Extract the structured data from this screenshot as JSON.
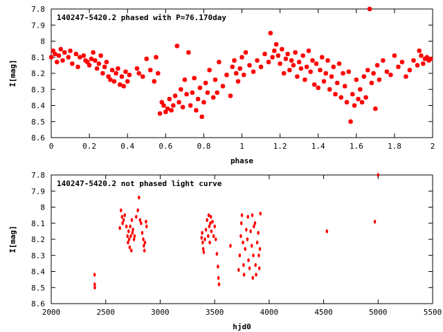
{
  "chart_data": [
    {
      "type": "scatter",
      "title": "140247-5420.2 phased with P=76.170day",
      "xlabel": "phase",
      "ylabel": "I[mag]",
      "xlim": [
        0,
        2
      ],
      "ylim": [
        8.6,
        7.8
      ],
      "y_reversed": true,
      "x_ticks": [
        "0",
        "0.2",
        "0.4",
        "0.6",
        "0.8",
        "1",
        "1.2",
        "1.4",
        "1.6",
        "1.8",
        "2"
      ],
      "y_ticks": [
        "7.8",
        "7.9",
        "8",
        "8.1",
        "8.2",
        "8.3",
        "8.4",
        "8.5",
        "8.6"
      ],
      "grid": false,
      "marker_color": "#ff0000",
      "points": [
        [
          0.0,
          8.1
        ],
        [
          0.01,
          8.06
        ],
        [
          0.02,
          8.08
        ],
        [
          0.03,
          8.13
        ],
        [
          0.04,
          8.09
        ],
        [
          0.05,
          8.05
        ],
        [
          0.06,
          8.12
        ],
        [
          0.07,
          8.07
        ],
        [
          0.09,
          8.1
        ],
        [
          0.1,
          8.06
        ],
        [
          0.11,
          8.14
        ],
        [
          0.13,
          8.08
        ],
        [
          0.14,
          8.16
        ],
        [
          0.15,
          8.1
        ],
        [
          0.17,
          8.09
        ],
        [
          0.18,
          8.12
        ],
        [
          0.19,
          8.13
        ],
        [
          0.2,
          8.15
        ],
        [
          0.21,
          8.11
        ],
        [
          0.22,
          8.07
        ],
        [
          0.23,
          8.12
        ],
        [
          0.24,
          8.17
        ],
        [
          0.25,
          8.14
        ],
        [
          0.26,
          8.09
        ],
        [
          0.27,
          8.2
        ],
        [
          0.28,
          8.16
        ],
        [
          0.29,
          8.13
        ],
        [
          0.3,
          8.22
        ],
        [
          0.31,
          8.24
        ],
        [
          0.32,
          8.18
        ],
        [
          0.33,
          8.25
        ],
        [
          0.34,
          8.2
        ],
        [
          0.35,
          8.17
        ],
        [
          0.36,
          8.27
        ],
        [
          0.37,
          8.22
        ],
        [
          0.38,
          8.28
        ],
        [
          0.39,
          8.19
        ],
        [
          0.4,
          8.25
        ],
        [
          0.41,
          8.21
        ],
        [
          0.45,
          8.17
        ],
        [
          0.46,
          8.2
        ],
        [
          0.48,
          8.22
        ],
        [
          0.5,
          8.11
        ],
        [
          0.52,
          8.18
        ],
        [
          0.54,
          8.25
        ],
        [
          0.55,
          8.1
        ],
        [
          0.56,
          8.2
        ],
        [
          0.57,
          8.45
        ],
        [
          0.58,
          8.38
        ],
        [
          0.59,
          8.4
        ],
        [
          0.6,
          8.44
        ],
        [
          0.61,
          8.42
        ],
        [
          0.62,
          8.36
        ],
        [
          0.63,
          8.43
        ],
        [
          0.64,
          8.4
        ],
        [
          0.65,
          8.34
        ],
        [
          0.66,
          8.03
        ],
        [
          0.67,
          8.38
        ],
        [
          0.68,
          8.3
        ],
        [
          0.69,
          8.41
        ],
        [
          0.7,
          8.24
        ],
        [
          0.71,
          8.33
        ],
        [
          0.72,
          8.07
        ],
        [
          0.73,
          8.4
        ],
        [
          0.74,
          8.32
        ],
        [
          0.75,
          8.23
        ],
        [
          0.76,
          8.43
        ],
        [
          0.77,
          8.36
        ],
        [
          0.78,
          8.29
        ],
        [
          0.79,
          8.47
        ],
        [
          0.8,
          8.38
        ],
        [
          0.81,
          8.26
        ],
        [
          0.82,
          8.32
        ],
        [
          0.83,
          8.18
        ],
        [
          0.85,
          8.35
        ],
        [
          0.86,
          8.24
        ],
        [
          0.87,
          8.32
        ],
        [
          0.88,
          8.13
        ],
        [
          0.9,
          8.28
        ],
        [
          0.92,
          8.21
        ],
        [
          0.94,
          8.34
        ],
        [
          0.95,
          8.16
        ],
        [
          0.96,
          8.12
        ],
        [
          0.97,
          8.2
        ],
        [
          0.98,
          8.25
        ],
        [
          0.99,
          8.17
        ],
        [
          1.0,
          8.1
        ],
        [
          1.01,
          8.21
        ],
        [
          1.02,
          8.07
        ],
        [
          1.04,
          8.15
        ],
        [
          1.06,
          8.19
        ],
        [
          1.08,
          8.12
        ],
        [
          1.1,
          8.16
        ],
        [
          1.12,
          8.08
        ],
        [
          1.14,
          8.13
        ],
        [
          1.15,
          7.95
        ],
        [
          1.16,
          8.1
        ],
        [
          1.17,
          8.06
        ],
        [
          1.18,
          8.02
        ],
        [
          1.19,
          8.09
        ],
        [
          1.2,
          8.14
        ],
        [
          1.21,
          8.05
        ],
        [
          1.22,
          8.2
        ],
        [
          1.23,
          8.11
        ],
        [
          1.24,
          8.08
        ],
        [
          1.25,
          8.18
        ],
        [
          1.26,
          8.12
        ],
        [
          1.27,
          8.15
        ],
        [
          1.28,
          8.07
        ],
        [
          1.29,
          8.22
        ],
        [
          1.3,
          8.13
        ],
        [
          1.31,
          8.17
        ],
        [
          1.32,
          8.09
        ],
        [
          1.33,
          8.24
        ],
        [
          1.34,
          8.16
        ],
        [
          1.35,
          8.06
        ],
        [
          1.36,
          8.19
        ],
        [
          1.37,
          8.12
        ],
        [
          1.38,
          8.27
        ],
        [
          1.39,
          8.14
        ],
        [
          1.4,
          8.29
        ],
        [
          1.41,
          8.18
        ],
        [
          1.42,
          8.1
        ],
        [
          1.43,
          8.25
        ],
        [
          1.44,
          8.2
        ],
        [
          1.45,
          8.12
        ],
        [
          1.46,
          8.3
        ],
        [
          1.47,
          8.22
        ],
        [
          1.48,
          8.16
        ],
        [
          1.49,
          8.33
        ],
        [
          1.5,
          8.26
        ],
        [
          1.51,
          8.14
        ],
        [
          1.52,
          8.35
        ],
        [
          1.53,
          8.2
        ],
        [
          1.54,
          8.28
        ],
        [
          1.55,
          8.38
        ],
        [
          1.56,
          8.19
        ],
        [
          1.57,
          8.5
        ],
        [
          1.58,
          8.33
        ],
        [
          1.59,
          8.4
        ],
        [
          1.6,
          8.24
        ],
        [
          1.61,
          8.36
        ],
        [
          1.62,
          8.3
        ],
        [
          1.63,
          8.38
        ],
        [
          1.64,
          8.22
        ],
        [
          1.65,
          8.35
        ],
        [
          1.66,
          8.18
        ],
        [
          1.67,
          7.8
        ],
        [
          1.68,
          8.26
        ],
        [
          1.69,
          8.2
        ],
        [
          1.7,
          8.42
        ],
        [
          1.71,
          8.15
        ],
        [
          1.72,
          8.24
        ],
        [
          1.74,
          8.12
        ],
        [
          1.76,
          8.19
        ],
        [
          1.78,
          8.21
        ],
        [
          1.8,
          8.09
        ],
        [
          1.82,
          8.16
        ],
        [
          1.84,
          8.13
        ],
        [
          1.86,
          8.22
        ],
        [
          1.88,
          8.18
        ],
        [
          1.9,
          8.12
        ],
        [
          1.92,
          8.15
        ],
        [
          1.93,
          8.06
        ],
        [
          1.94,
          8.09
        ],
        [
          1.95,
          8.14
        ],
        [
          1.96,
          8.11
        ],
        [
          1.97,
          8.1
        ],
        [
          1.98,
          8.12
        ],
        [
          1.99,
          8.11
        ]
      ]
    },
    {
      "type": "scatter",
      "title": "140247-5420.2 not phased light curve",
      "xlabel": "hjd0",
      "ylabel": "I[mag]",
      "xlim": [
        2000,
        5500
      ],
      "ylim": [
        8.6,
        7.8
      ],
      "y_reversed": true,
      "x_ticks": [
        "2000",
        "2500",
        "3000",
        "3500",
        "4000",
        "4500",
        "5000",
        "5500"
      ],
      "y_ticks": [
        "7.8",
        "7.9",
        "8",
        "8.1",
        "8.2",
        "8.3",
        "8.4",
        "8.5",
        "8.6"
      ],
      "grid": false,
      "marker_color": "#ff0000",
      "points": [
        [
          2398,
          8.42
        ],
        [
          2399,
          8.48
        ],
        [
          2400,
          8.5
        ],
        [
          2630,
          8.13
        ],
        [
          2640,
          8.02
        ],
        [
          2650,
          8.06
        ],
        [
          2655,
          8.1
        ],
        [
          2665,
          8.08
        ],
        [
          2675,
          8.05
        ],
        [
          2690,
          8.12
        ],
        [
          2700,
          8.18
        ],
        [
          2705,
          8.22
        ],
        [
          2710,
          8.15
        ],
        [
          2715,
          8.2
        ],
        [
          2720,
          8.25
        ],
        [
          2725,
          8.12
        ],
        [
          2730,
          8.18
        ],
        [
          2735,
          8.27
        ],
        [
          2740,
          8.08
        ],
        [
          2745,
          8.16
        ],
        [
          2750,
          8.14
        ],
        [
          2760,
          8.2
        ],
        [
          2765,
          8.18
        ],
        [
          2780,
          8.06
        ],
        [
          2795,
          8.02
        ],
        [
          2805,
          7.94
        ],
        [
          2815,
          8.08
        ],
        [
          2825,
          8.1
        ],
        [
          2835,
          8.16
        ],
        [
          2845,
          8.2
        ],
        [
          2850,
          8.24
        ],
        [
          2855,
          8.27
        ],
        [
          2860,
          8.22
        ],
        [
          2870,
          8.09
        ],
        [
          2875,
          8.12
        ],
        [
          3380,
          8.19
        ],
        [
          3385,
          8.16
        ],
        [
          3390,
          8.22
        ],
        [
          3395,
          8.26
        ],
        [
          3400,
          8.28
        ],
        [
          3410,
          8.2
        ],
        [
          3420,
          8.14
        ],
        [
          3430,
          8.08
        ],
        [
          3440,
          8.18
        ],
        [
          3445,
          8.05
        ],
        [
          3450,
          8.12
        ],
        [
          3455,
          8.22
        ],
        [
          3460,
          8.1
        ],
        [
          3465,
          8.06
        ],
        [
          3470,
          8.15
        ],
        [
          3480,
          8.09
        ],
        [
          3490,
          8.18
        ],
        [
          3500,
          8.12
        ],
        [
          3510,
          8.2
        ],
        [
          3520,
          8.29
        ],
        [
          3530,
          8.37
        ],
        [
          3535,
          8.44
        ],
        [
          3540,
          8.48
        ],
        [
          3645,
          8.24
        ],
        [
          3720,
          8.39
        ],
        [
          3730,
          8.3
        ],
        [
          3740,
          8.18
        ],
        [
          3745,
          8.1
        ],
        [
          3750,
          8.05
        ],
        [
          3760,
          8.22
        ],
        [
          3765,
          8.36
        ],
        [
          3770,
          8.42
        ],
        [
          3780,
          8.26
        ],
        [
          3790,
          8.14
        ],
        [
          3800,
          8.2
        ],
        [
          3805,
          8.06
        ],
        [
          3810,
          8.33
        ],
        [
          3820,
          8.38
        ],
        [
          3830,
          8.15
        ],
        [
          3840,
          8.24
        ],
        [
          3845,
          8.05
        ],
        [
          3850,
          8.44
        ],
        [
          3855,
          8.3
        ],
        [
          3860,
          8.12
        ],
        [
          3870,
          8.1
        ],
        [
          3875,
          8.36
        ],
        [
          3880,
          8.42
        ],
        [
          3890,
          8.22
        ],
        [
          3900,
          8.16
        ],
        [
          3905,
          8.3
        ],
        [
          3910,
          8.38
        ],
        [
          3915,
          8.26
        ],
        [
          3920,
          8.04
        ],
        [
          4530,
          8.15
        ],
        [
          4970,
          8.09
        ],
        [
          5000,
          7.8
        ]
      ]
    }
  ]
}
